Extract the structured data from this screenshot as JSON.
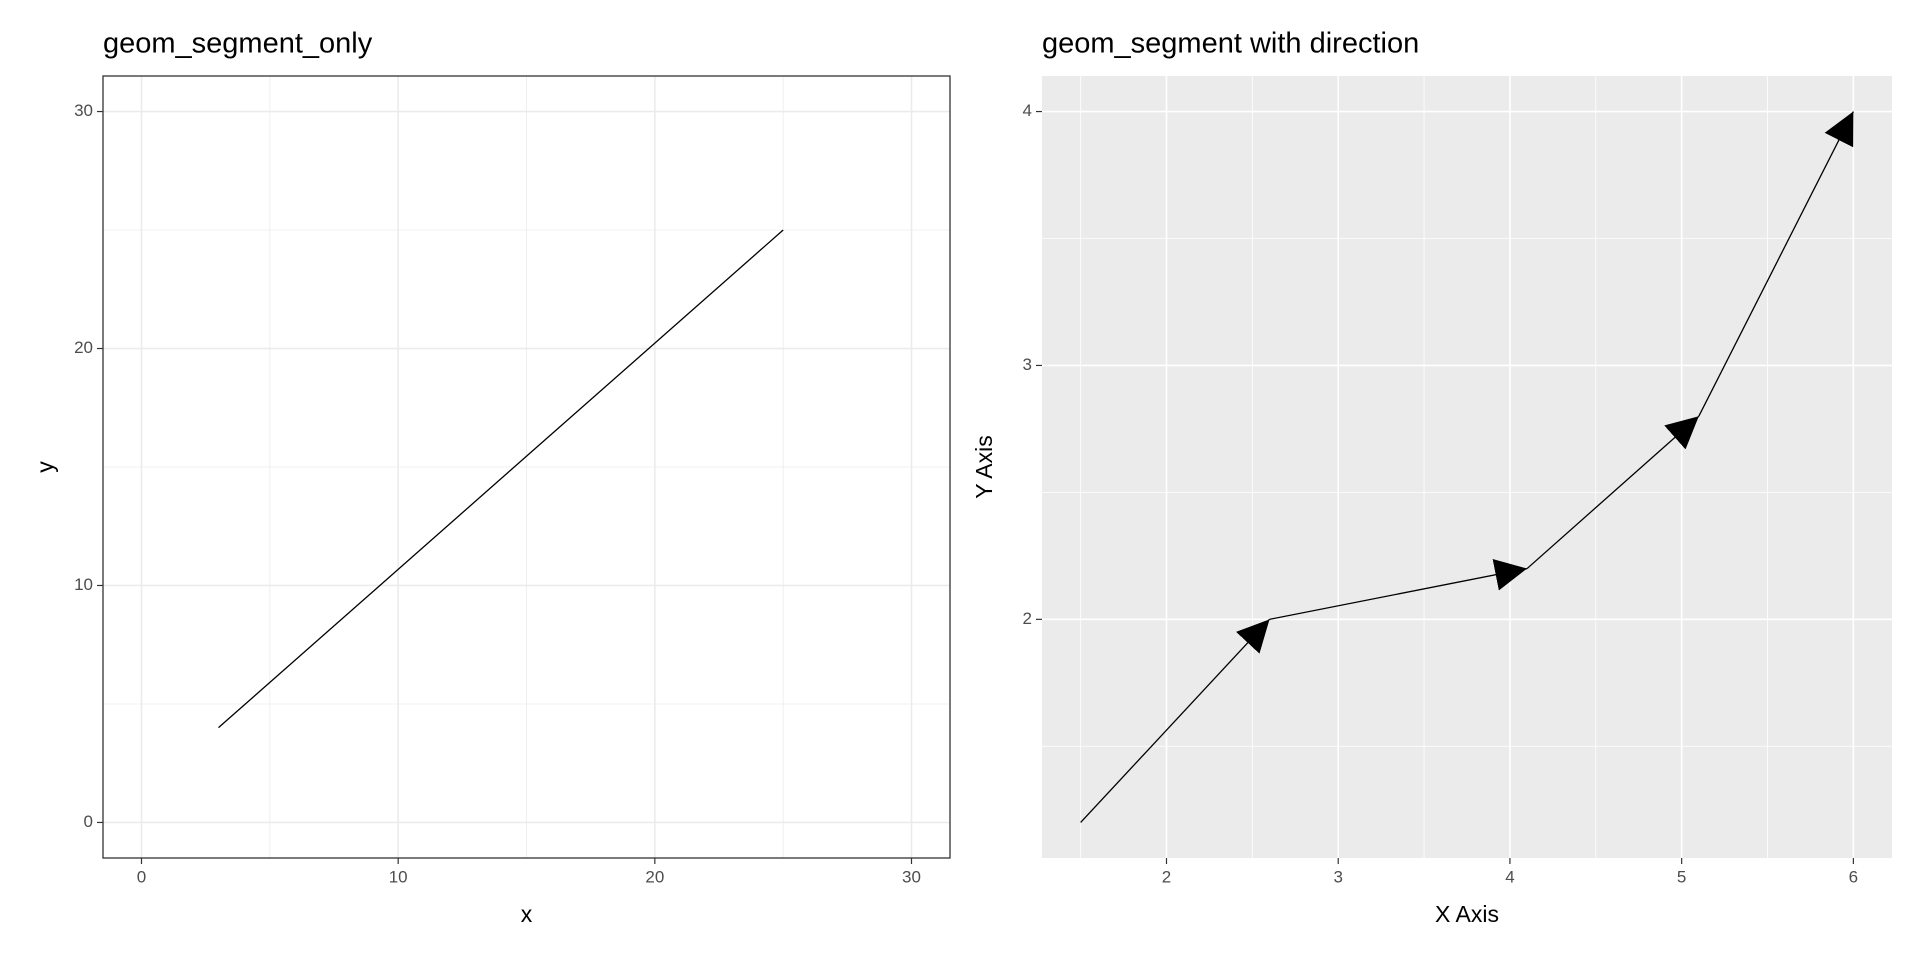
{
  "chart_data": [
    {
      "type": "segment",
      "title": "geom_segment_only",
      "x_label": "x",
      "y_label": "y",
      "x": [
        3,
        25
      ],
      "values": [
        4,
        25
      ],
      "color": "#000000",
      "arrows": false,
      "xlim": [
        -1.5,
        31.5
      ],
      "ylim": [
        -1.5,
        31.5
      ],
      "xticks": [
        0,
        10,
        20,
        30
      ],
      "yticks": [
        0,
        10,
        20,
        30
      ],
      "grid": true,
      "background": "#ffffff",
      "grid_color": "#ebebeb",
      "border": true
    },
    {
      "type": "segment",
      "title": "geom_segment with direction",
      "x_label": "X Axis",
      "y_label": "Y Axis",
      "x": [
        1.5,
        2.6,
        4.1,
        5.1,
        6
      ],
      "values": [
        1.2,
        2,
        2.2,
        2.8,
        4
      ],
      "color": "#000000",
      "arrows": true,
      "xlim": [
        1.275,
        6.225
      ],
      "ylim": [
        1.06,
        4.14
      ],
      "xticks": [
        2,
        3,
        4,
        5,
        6
      ],
      "yticks": [
        2,
        3,
        4
      ],
      "grid": true,
      "background": "#ebebeb",
      "grid_color": "#ffffff",
      "border": false
    }
  ]
}
